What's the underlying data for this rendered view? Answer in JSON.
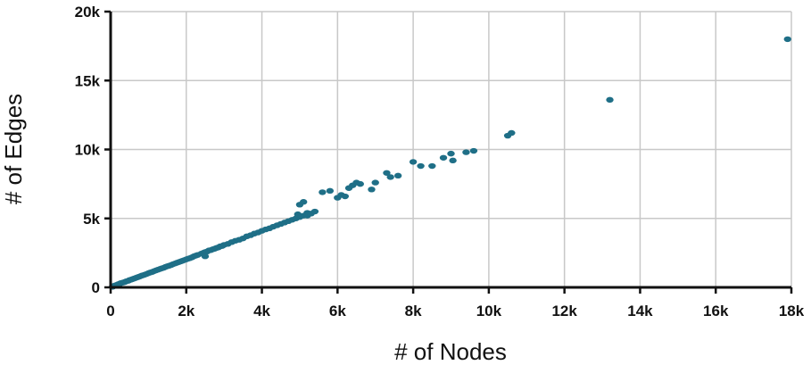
{
  "chart_data": {
    "type": "scatter",
    "title": "",
    "xlabel": "# of Nodes",
    "ylabel": "# of Edges",
    "xlim": [
      0,
      18000
    ],
    "ylim": [
      0,
      20000
    ],
    "grid": true,
    "colors": {
      "points": "#1f6f87",
      "grid": "#c8c8c8",
      "axis": "#111111"
    },
    "x_ticks": [
      {
        "value": 0,
        "label": "0"
      },
      {
        "value": 2000,
        "label": "2k"
      },
      {
        "value": 4000,
        "label": "4k"
      },
      {
        "value": 6000,
        "label": "6k"
      },
      {
        "value": 8000,
        "label": "8k"
      },
      {
        "value": 10000,
        "label": "10k"
      },
      {
        "value": 12000,
        "label": "12k"
      },
      {
        "value": 14000,
        "label": "14k"
      },
      {
        "value": 16000,
        "label": "16k"
      },
      {
        "value": 18000,
        "label": "18k"
      }
    ],
    "y_ticks": [
      {
        "value": 0,
        "label": "0"
      },
      {
        "value": 5000,
        "label": "5k"
      },
      {
        "value": 10000,
        "label": "10k"
      },
      {
        "value": 15000,
        "label": "15k"
      },
      {
        "value": 20000,
        "label": "20k"
      }
    ],
    "series": [
      {
        "points": [
          [
            50,
            40
          ],
          [
            80,
            90
          ],
          [
            100,
            120
          ],
          [
            130,
            150
          ],
          [
            150,
            120
          ],
          [
            180,
            200
          ],
          [
            200,
            230
          ],
          [
            230,
            240
          ],
          [
            260,
            300
          ],
          [
            300,
            330
          ],
          [
            330,
            350
          ],
          [
            370,
            380
          ],
          [
            400,
            420
          ],
          [
            430,
            450
          ],
          [
            470,
            480
          ],
          [
            500,
            530
          ],
          [
            540,
            560
          ],
          [
            580,
            600
          ],
          [
            620,
            640
          ],
          [
            660,
            680
          ],
          [
            700,
            720
          ],
          [
            740,
            760
          ],
          [
            780,
            800
          ],
          [
            820,
            850
          ],
          [
            860,
            880
          ],
          [
            900,
            920
          ],
          [
            950,
            970
          ],
          [
            1000,
            1030
          ],
          [
            1050,
            1080
          ],
          [
            1100,
            1120
          ],
          [
            1150,
            1180
          ],
          [
            1200,
            1230
          ],
          [
            1250,
            1280
          ],
          [
            1300,
            1330
          ],
          [
            1350,
            1380
          ],
          [
            1400,
            1420
          ],
          [
            1450,
            1480
          ],
          [
            1500,
            1530
          ],
          [
            1550,
            1570
          ],
          [
            1600,
            1620
          ],
          [
            1650,
            1680
          ],
          [
            1700,
            1730
          ],
          [
            1750,
            1780
          ],
          [
            1800,
            1830
          ],
          [
            1850,
            1880
          ],
          [
            1900,
            1930
          ],
          [
            1950,
            1980
          ],
          [
            2000,
            2030
          ],
          [
            2050,
            2080
          ],
          [
            2100,
            2120
          ],
          [
            2150,
            2180
          ],
          [
            2200,
            2250
          ],
          [
            2250,
            2300
          ],
          [
            2300,
            2350
          ],
          [
            2400,
            2450
          ],
          [
            2450,
            2500
          ],
          [
            2500,
            2560
          ],
          [
            2550,
            2600
          ],
          [
            2600,
            2680
          ],
          [
            2650,
            2700
          ],
          [
            2700,
            2760
          ],
          [
            2750,
            2800
          ],
          [
            2800,
            2860
          ],
          [
            2850,
            2900
          ],
          [
            2900,
            2980
          ],
          [
            2950,
            3000
          ],
          [
            3000,
            3080
          ],
          [
            3100,
            3150
          ],
          [
            3200,
            3280
          ],
          [
            3300,
            3380
          ],
          [
            3400,
            3450
          ],
          [
            3500,
            3550
          ],
          [
            3600,
            3700
          ],
          [
            3700,
            3780
          ],
          [
            3800,
            3900
          ],
          [
            3900,
            3980
          ],
          [
            4000,
            4100
          ],
          [
            4100,
            4200
          ],
          [
            4200,
            4280
          ],
          [
            4300,
            4400
          ],
          [
            4400,
            4500
          ],
          [
            4500,
            4600
          ],
          [
            4600,
            4700
          ],
          [
            4700,
            4800
          ],
          [
            4800,
            4900
          ],
          [
            4900,
            5000
          ],
          [
            5000,
            5100
          ],
          [
            5100,
            5200
          ],
          [
            2500,
            2250
          ],
          [
            5200,
            5400
          ],
          [
            5000,
            6000
          ],
          [
            5100,
            6200
          ],
          [
            4950,
            5300
          ],
          [
            5200,
            5200
          ],
          [
            5300,
            5350
          ],
          [
            5400,
            5500
          ],
          [
            5600,
            6900
          ],
          [
            5800,
            7000
          ],
          [
            6000,
            6500
          ],
          [
            6100,
            6700
          ],
          [
            6200,
            6600
          ],
          [
            6300,
            7200
          ],
          [
            6400,
            7400
          ],
          [
            6500,
            7600
          ],
          [
            6600,
            7500
          ],
          [
            6900,
            7100
          ],
          [
            7000,
            7600
          ],
          [
            7300,
            8300
          ],
          [
            7400,
            8000
          ],
          [
            7600,
            8100
          ],
          [
            8000,
            9100
          ],
          [
            8200,
            8800
          ],
          [
            8500,
            8800
          ],
          [
            8800,
            9400
          ],
          [
            9000,
            9700
          ],
          [
            9050,
            9200
          ],
          [
            9400,
            9800
          ],
          [
            9600,
            9900
          ],
          [
            10500,
            11000
          ],
          [
            10600,
            11200
          ],
          [
            13200,
            13600
          ],
          [
            17900,
            18000
          ]
        ]
      }
    ]
  }
}
